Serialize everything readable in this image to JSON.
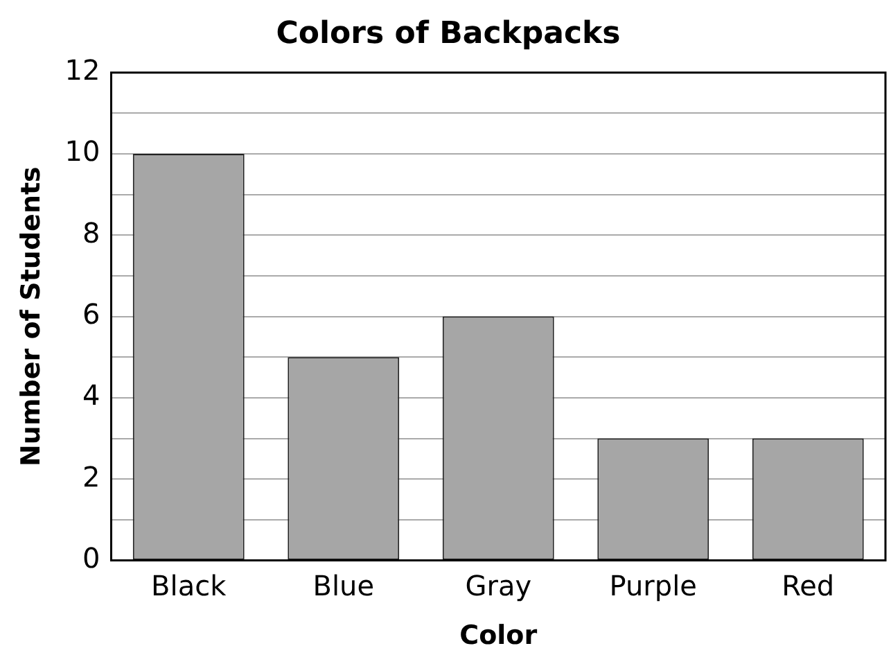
{
  "chart_data": {
    "type": "bar",
    "title": "Colors of Backpacks",
    "xlabel": "Color",
    "ylabel": "Number of Students",
    "categories": [
      "Black",
      "Blue",
      "Gray",
      "Purple",
      "Red"
    ],
    "values": [
      10,
      5,
      6,
      3,
      3
    ],
    "color": "#a6a6a6",
    "ylim": [
      0,
      12
    ],
    "yticks": [
      0,
      {
        "value": 1,
        "label": null
      },
      2,
      {
        "value": 3,
        "label": null
      },
      4,
      {
        "value": 5,
        "label": null
      },
      6,
      {
        "value": 7,
        "label": null
      },
      8,
      {
        "value": 9,
        "label": null
      },
      10,
      {
        "value": 11,
        "label": null
      },
      12
    ],
    "grid": true
  }
}
